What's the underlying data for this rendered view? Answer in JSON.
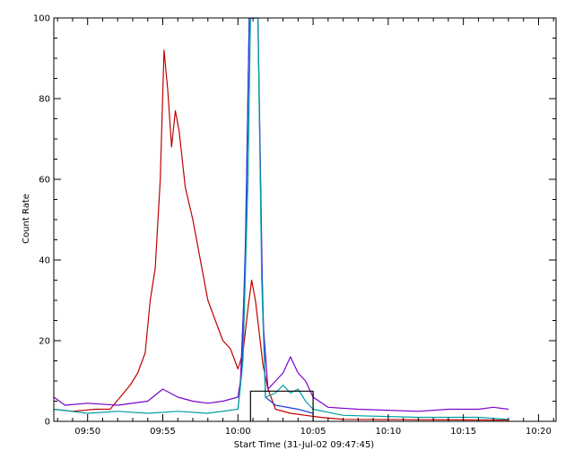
{
  "chart_data": {
    "type": "line",
    "title": "",
    "xlabel": "Start Time (31-Jul-02 09:47:45)",
    "ylabel": "Count Rate",
    "xlim": [
      "09:47:45",
      "10:21:10"
    ],
    "ylim": [
      0,
      100
    ],
    "x_ticks": [
      "09:50",
      "09:55",
      "10:00",
      "10:05",
      "10:10",
      "10:15",
      "10:20"
    ],
    "y_ticks": [
      "0",
      "20",
      "40",
      "60",
      "80",
      "100"
    ],
    "grid": false,
    "legend": "none",
    "series": [
      {
        "color": "#c00000",
        "points": [
          [
            "09:47:45",
            3
          ],
          [
            "09:49:00",
            2.5
          ],
          [
            "09:50:30",
            3
          ],
          [
            "09:51:30",
            3
          ],
          [
            "09:52:10",
            6
          ],
          [
            "09:52:50",
            9
          ],
          [
            "09:53:20",
            12
          ],
          [
            "09:53:50",
            17
          ],
          [
            "09:54:10",
            30
          ],
          [
            "09:54:30",
            38
          ],
          [
            "09:54:50",
            60
          ],
          [
            "09:55:05",
            92
          ],
          [
            "09:55:20",
            82
          ],
          [
            "09:55:35",
            68
          ],
          [
            "09:55:50",
            77
          ],
          [
            "09:56:05",
            72
          ],
          [
            "09:56:30",
            58
          ],
          [
            "09:57:00",
            50
          ],
          [
            "09:57:30",
            40
          ],
          [
            "09:58:00",
            30
          ],
          [
            "09:58:30",
            25
          ],
          [
            "09:59:00",
            20
          ],
          [
            "09:59:30",
            18
          ],
          [
            "10:00:00",
            13
          ],
          [
            "10:00:20",
            17
          ],
          [
            "10:00:40",
            28
          ],
          [
            "10:00:55",
            35
          ],
          [
            "10:01:10",
            30
          ],
          [
            "10:01:25",
            22
          ],
          [
            "10:01:40",
            14
          ],
          [
            "10:02:00",
            8
          ],
          [
            "10:02:30",
            3
          ],
          [
            "10:03:30",
            2
          ],
          [
            "10:04:30",
            1.5
          ],
          [
            "10:05:30",
            1
          ],
          [
            "10:07:00",
            0.5
          ],
          [
            "10:18:00",
            0.3
          ]
        ]
      },
      {
        "color": "#7a00cc",
        "points": [
          [
            "09:47:45",
            6
          ],
          [
            "09:48:30",
            4
          ],
          [
            "09:50:00",
            4.5
          ],
          [
            "09:52:00",
            4
          ],
          [
            "09:54:00",
            5
          ],
          [
            "09:55:00",
            8
          ],
          [
            "09:56:00",
            6
          ],
          [
            "09:57:00",
            5
          ],
          [
            "09:58:00",
            4.5
          ],
          [
            "09:59:00",
            5
          ],
          [
            "10:00:00",
            6
          ],
          [
            "10:00:10",
            10
          ],
          [
            "10:00:30",
            40
          ],
          [
            "10:00:45",
            100
          ],
          [
            "10:01:20",
            100
          ],
          [
            "10:01:40",
            25
          ],
          [
            "10:02:00",
            8
          ],
          [
            "10:02:30",
            10
          ],
          [
            "10:03:00",
            12
          ],
          [
            "10:03:30",
            16
          ],
          [
            "10:04:00",
            12
          ],
          [
            "10:04:30",
            10
          ],
          [
            "10:05:00",
            6
          ],
          [
            "10:06:00",
            3.5
          ],
          [
            "10:08:00",
            3
          ],
          [
            "10:12:00",
            2.5
          ],
          [
            "10:14:00",
            3
          ],
          [
            "10:16:00",
            3
          ],
          [
            "10:17:00",
            3.5
          ],
          [
            "10:18:00",
            3
          ]
        ]
      },
      {
        "color": "#1f3fd6",
        "points": [
          [
            "10:00:00",
            3
          ],
          [
            "10:00:15",
            12
          ],
          [
            "10:00:30",
            45
          ],
          [
            "10:00:45",
            100
          ],
          [
            "10:01:20",
            100
          ],
          [
            "10:01:35",
            40
          ],
          [
            "10:01:50",
            6
          ],
          [
            "10:02:30",
            4
          ],
          [
            "10:04:00",
            3
          ],
          [
            "10:05:00",
            2
          ]
        ]
      },
      {
        "color": "#00a0a0",
        "points": [
          [
            "09:47:45",
            3
          ],
          [
            "09:50:00",
            2
          ],
          [
            "09:52:00",
            2.5
          ],
          [
            "09:54:00",
            2
          ],
          [
            "09:56:00",
            2.5
          ],
          [
            "09:58:00",
            2
          ],
          [
            "10:00:00",
            3
          ],
          [
            "10:00:20",
            15
          ],
          [
            "10:00:40",
            60
          ],
          [
            "10:00:50",
            100
          ],
          [
            "10:01:20",
            100
          ],
          [
            "10:01:35",
            35
          ],
          [
            "10:01:50",
            6
          ],
          [
            "10:02:30",
            7
          ],
          [
            "10:03:00",
            9
          ],
          [
            "10:03:30",
            7
          ],
          [
            "10:04:00",
            8
          ],
          [
            "10:04:30",
            5
          ],
          [
            "10:05:00",
            3
          ],
          [
            "10:07:00",
            1.5
          ],
          [
            "10:12:00",
            1
          ],
          [
            "10:16:00",
            1
          ],
          [
            "10:18:00",
            0.5
          ]
        ]
      },
      {
        "color": "#000000",
        "points": [
          [
            "10:00:50",
            0
          ],
          [
            "10:00:50",
            7.5
          ],
          [
            "10:05:00",
            7.5
          ],
          [
            "10:05:00",
            0
          ]
        ]
      }
    ]
  }
}
